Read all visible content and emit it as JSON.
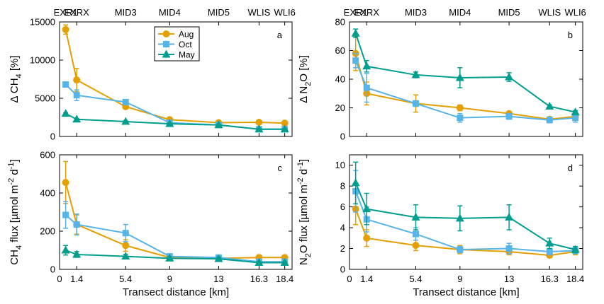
{
  "colors": {
    "Aug": "#e69f00",
    "Oct": "#56b4e9",
    "May": "#009e8f"
  },
  "sites": [
    "EXR1",
    "EXRX",
    "MID3",
    "MID4",
    "MID5",
    "WLIS",
    "WLI6"
  ],
  "site_x": [
    0.5,
    1.4,
    5.4,
    9,
    13,
    16.3,
    18.4
  ],
  "x_ticks": [
    "0",
    "1.4",
    "5.4",
    "9",
    "13",
    "16.3",
    "18.4"
  ],
  "x_tick_values": [
    0,
    1.4,
    5.4,
    9,
    13,
    16.3,
    18.4
  ],
  "xlabel": "Transect distance [km]",
  "chart_data": [
    {
      "type": "line",
      "panel_label": "a",
      "ylabel_main": "Δ CH",
      "ylabel_sub": "4",
      "ylabel_tail": " [%]",
      "ylim": [
        0,
        15000
      ],
      "yticks": [
        0,
        5000,
        10000,
        15000
      ],
      "ytick_labels": [
        "0",
        "5000",
        "10000",
        "15000"
      ],
      "legend": true,
      "x": [
        0.5,
        1.4,
        5.4,
        9,
        13,
        16.3,
        18.4
      ],
      "series": [
        {
          "name": "Aug",
          "marker": "circle",
          "values": [
            14000,
            7400,
            3900,
            2200,
            1800,
            1850,
            1750
          ],
          "err": [
            600,
            1500,
            200,
            100,
            100,
            100,
            100
          ]
        },
        {
          "name": "Oct",
          "marker": "square",
          "values": [
            6800,
            5400,
            4500,
            1800,
            1500,
            950,
            950
          ],
          "err": [
            150,
            700,
            250,
            100,
            100,
            80,
            80
          ]
        },
        {
          "name": "May",
          "marker": "triangle",
          "values": [
            3000,
            2250,
            1950,
            1650,
            1500,
            950,
            950
          ],
          "err": [
            100,
            100,
            100,
            80,
            80,
            60,
            60
          ]
        }
      ]
    },
    {
      "type": "line",
      "panel_label": "b",
      "ylabel_main": "Δ N",
      "ylabel_sub": "2",
      "ylabel_tail": "O [%]",
      "ylim": [
        0,
        80
      ],
      "yticks": [
        0,
        20,
        40,
        60,
        80
      ],
      "ytick_labels": [
        "0",
        "20",
        "40",
        "60",
        "80"
      ],
      "legend": false,
      "x": [
        0.5,
        1.4,
        5.4,
        9,
        13,
        16.3,
        18.4
      ],
      "series": [
        {
          "name": "Aug",
          "marker": "circle",
          "values": [
            58,
            30,
            23,
            20,
            16,
            12,
            14
          ],
          "err": [
            12,
            8,
            6,
            2,
            1,
            1,
            1
          ]
        },
        {
          "name": "Oct",
          "marker": "square",
          "values": [
            53,
            34,
            23,
            13,
            14,
            11.5,
            13
          ],
          "err": [
            5,
            10,
            2,
            3,
            2,
            2,
            3
          ]
        },
        {
          "name": "May",
          "marker": "triangle",
          "values": [
            72,
            49,
            43,
            41,
            41.5,
            21,
            17
          ],
          "err": [
            3,
            4,
            2,
            7,
            3,
            1,
            1
          ]
        }
      ]
    },
    {
      "type": "line",
      "panel_label": "c",
      "ylabel_main": "CH",
      "ylabel_sub": "4",
      "ylabel_tail": " flux [µmol m",
      "ylabel_sup1": "-2",
      "ylabel_mid": " d",
      "ylabel_sup2": "-1",
      "ylabel_end": "]",
      "ylim": [
        0,
        600
      ],
      "yticks": [
        0,
        200,
        400,
        600
      ],
      "ytick_labels": [
        "0",
        "200",
        "400",
        "600"
      ],
      "legend": false,
      "x": [
        0.5,
        1.4,
        5.4,
        9,
        13,
        16.3,
        18.4
      ],
      "series": [
        {
          "name": "Aug",
          "marker": "circle",
          "values": [
            455,
            235,
            125,
            62,
            58,
            62,
            62
          ],
          "err": [
            110,
            50,
            30,
            8,
            8,
            12,
            10
          ]
        },
        {
          "name": "Oct",
          "marker": "square",
          "values": [
            285,
            235,
            190,
            68,
            62,
            40,
            40
          ],
          "err": [
            70,
            55,
            45,
            10,
            10,
            8,
            8
          ]
        },
        {
          "name": "May",
          "marker": "triangle",
          "values": [
            100,
            78,
            68,
            58,
            55,
            35,
            35
          ],
          "err": [
            25,
            15,
            10,
            8,
            8,
            6,
            5
          ]
        }
      ]
    },
    {
      "type": "line",
      "panel_label": "d",
      "ylabel_main": "N",
      "ylabel_sub": "2",
      "ylabel_tail": "O flux [µmol m",
      "ylabel_sup1": "-2",
      "ylabel_mid": " d",
      "ylabel_sup2": "-1",
      "ylabel_end": "]",
      "ylim": [
        0,
        11
      ],
      "yticks": [
        0,
        2,
        4,
        6,
        8,
        10
      ],
      "ytick_labels": [
        "0",
        "2",
        "4",
        "6",
        "8",
        "10"
      ],
      "legend": false,
      "x": [
        0.5,
        1.4,
        5.4,
        9,
        13,
        16.3,
        18.4
      ],
      "series": [
        {
          "name": "Aug",
          "marker": "circle",
          "values": [
            5.8,
            3.0,
            2.3,
            1.9,
            1.7,
            1.35,
            1.7
          ],
          "err": [
            1.5,
            0.8,
            0.5,
            0.4,
            0.3,
            0.2,
            0.3
          ]
        },
        {
          "name": "Oct",
          "marker": "square",
          "values": [
            7.5,
            4.8,
            3.4,
            1.9,
            2.0,
            1.7,
            1.8
          ],
          "err": [
            2.0,
            1.2,
            0.6,
            0.3,
            0.5,
            0.3,
            0.3
          ]
        },
        {
          "name": "May",
          "marker": "triangle",
          "values": [
            8.3,
            5.8,
            5.0,
            4.9,
            5.0,
            2.5,
            1.9
          ],
          "err": [
            2.0,
            1.5,
            1.2,
            1.2,
            1.2,
            0.5,
            0.3
          ]
        }
      ]
    }
  ]
}
